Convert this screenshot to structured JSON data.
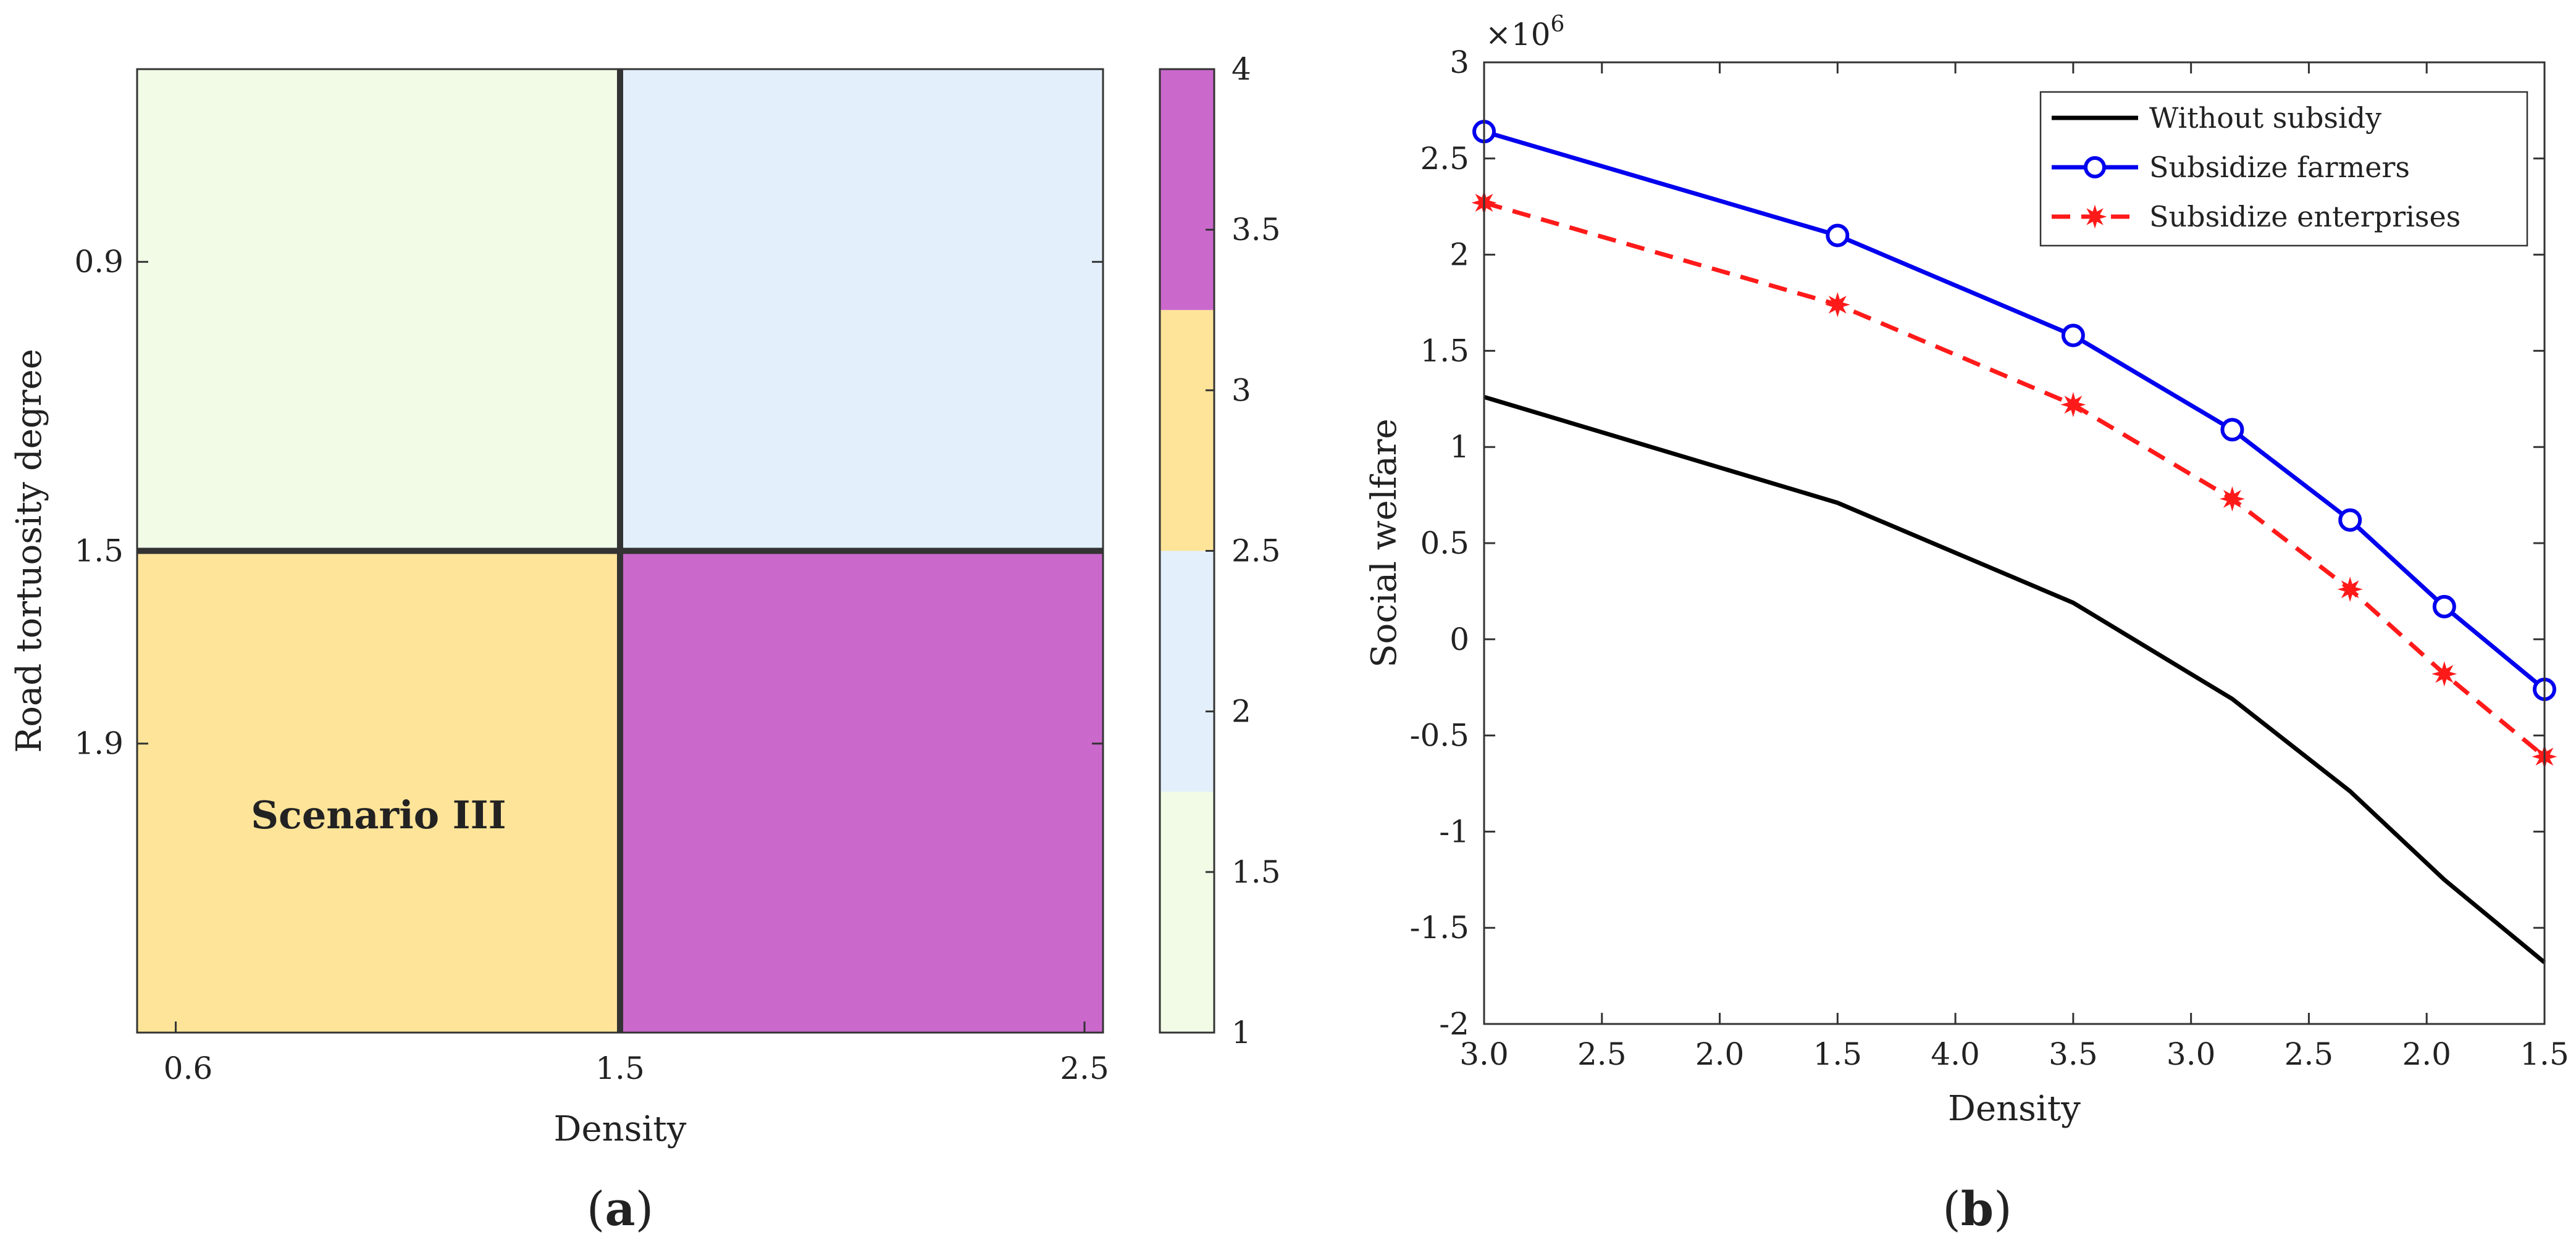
{
  "chart_data": [
    {
      "panel": "a",
      "type": "heatmap",
      "caption_letter": "a",
      "xlabel": "Density",
      "ylabel": "Road tortuosity degree",
      "x_tick_labels": [
        "0.6",
        "1.5",
        "2.5"
      ],
      "y_tick_labels": [
        "0.9",
        "1.5",
        "1.9"
      ],
      "cells": [
        {
          "col": 0,
          "row": 0,
          "value": 1
        },
        {
          "col": 1,
          "row": 0,
          "value": 2
        },
        {
          "col": 0,
          "row": 1,
          "value": 3
        },
        {
          "col": 1,
          "row": 1,
          "value": 4
        }
      ],
      "annotation": {
        "text": "Scenario III",
        "col": 0,
        "row": 1
      },
      "colorbar": {
        "range": [
          1,
          4
        ],
        "tick_labels": [
          "1",
          "1.5",
          "2",
          "2.5",
          "3",
          "3.5",
          "4"
        ],
        "bands": [
          {
            "from": 1,
            "to": 1.75,
            "color": "#f1fbe6"
          },
          {
            "from": 1.75,
            "to": 2.5,
            "color": "#e3f0fc"
          },
          {
            "from": 2.5,
            "to": 3.25,
            "color": "#fde499"
          },
          {
            "from": 3.25,
            "to": 4,
            "color": "#cb68cc"
          }
        ]
      },
      "grid": false
    },
    {
      "panel": "b",
      "type": "line",
      "caption_letter": "b",
      "xlabel": "Density",
      "ylabel": "Social welfare",
      "y_multiplier": "×10",
      "y_exponent": "6",
      "x_tick_labels": [
        "3.0",
        "2.5",
        "2.0",
        "1.5",
        "4.0",
        "3.5",
        "3.0",
        "2.5",
        "2.0",
        "1.5"
      ],
      "y_ticks": [
        -2,
        -1.5,
        -1,
        -0.5,
        0,
        0.5,
        1,
        1.5,
        2,
        2.5,
        3
      ],
      "ylim": [
        -2,
        3
      ],
      "legend_position": "top-right",
      "grid": false,
      "series": [
        {
          "name": "Without subsidy",
          "color": "#000000",
          "marker": "none",
          "dash": "solid",
          "points": [
            [
              0,
              1.26
            ],
            [
              3,
              0.71
            ],
            [
              5,
              0.19
            ],
            [
              6.35,
              -0.31
            ],
            [
              7.35,
              -0.79
            ],
            [
              8.15,
              -1.25
            ],
            [
              9,
              -1.68
            ]
          ]
        },
        {
          "name": "Subsidize farmers",
          "color": "#0000ee",
          "marker": "circle",
          "dash": "solid",
          "points": [
            [
              0,
              2.64
            ],
            [
              3,
              2.1
            ],
            [
              5,
              1.58
            ],
            [
              6.35,
              1.09
            ],
            [
              7.35,
              0.62
            ],
            [
              8.15,
              0.17
            ],
            [
              9,
              -0.26
            ]
          ]
        },
        {
          "name": "Subsidize enterprises",
          "color": "#ff1a1a",
          "marker": "star",
          "dash": "dashed",
          "points": [
            [
              0,
              2.27
            ],
            [
              3,
              1.74
            ],
            [
              5,
              1.22
            ],
            [
              6.35,
              0.73
            ],
            [
              7.35,
              0.26
            ],
            [
              8.15,
              -0.18
            ],
            [
              9,
              -0.61
            ]
          ]
        }
      ]
    }
  ]
}
